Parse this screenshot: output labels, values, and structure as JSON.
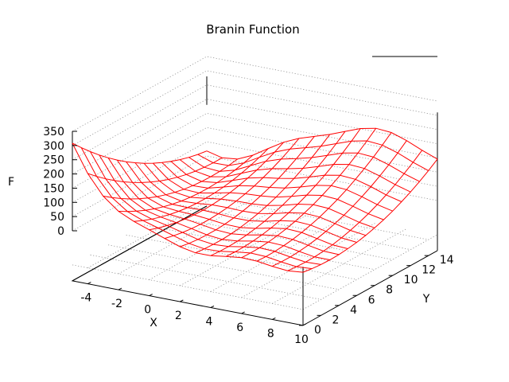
{
  "chart_data": {
    "type": "surface",
    "title": "Branin Function",
    "xlabel": "X",
    "ylabel": "Y",
    "zlabel": "F",
    "xlim": [
      -5,
      10
    ],
    "ylim": [
      0,
      15
    ],
    "zlim": [
      0,
      350
    ],
    "x_ticks": [
      "-4",
      "-2",
      "0",
      "2",
      "4",
      "6",
      "8",
      "10"
    ],
    "y_ticks": [
      "0",
      "2",
      "4",
      "6",
      "8",
      "10",
      "12",
      "14"
    ],
    "z_ticks": [
      "0",
      "50",
      "100",
      "150",
      "200",
      "250",
      "300",
      "350"
    ],
    "grid": true,
    "legend": "top-right",
    "surface_color": "#ff0000",
    "function": "branin",
    "sample_x": [
      -5,
      -4,
      -3,
      -2,
      -1,
      0,
      1,
      2,
      3,
      4,
      5,
      6,
      7,
      8,
      9,
      10
    ],
    "sample_y": [
      0,
      1,
      2,
      3,
      4,
      5,
      6,
      7,
      8,
      9,
      10,
      11,
      12,
      13,
      14,
      15
    ]
  }
}
